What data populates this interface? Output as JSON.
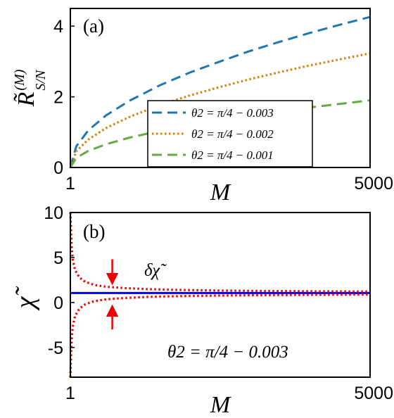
{
  "chart_data": [
    {
      "type": "line",
      "panel_label": "(a)",
      "xlabel": "M",
      "ylabel": "R̃",
      "ylabel_sup": "(M)",
      "ylabel_sub": "S/N",
      "xlim": [
        1,
        5000
      ],
      "ylim": [
        0,
        4.5
      ],
      "xticks": [
        "1",
        "5000"
      ],
      "yticks": [
        0,
        2,
        4
      ],
      "yticklabels": [
        "0",
        "2",
        "4"
      ],
      "legend_position": "bottom-right",
      "grid": false,
      "series": [
        {
          "name": "θ2 = π/4 − 0.003",
          "color": "#1f77b4",
          "style": "dashed",
          "x": [
            1,
            100,
            300,
            600,
            1000,
            1500,
            2000,
            2500,
            3000,
            3500,
            4000,
            4500,
            5000
          ],
          "y": [
            0,
            0.6,
            1.05,
            1.48,
            1.9,
            2.33,
            2.69,
            3.0,
            3.3,
            3.56,
            3.81,
            4.04,
            4.26
          ]
        },
        {
          "name": "θ2 = π/4 − 0.002",
          "color": "#d4820a",
          "style": "dotted",
          "x": [
            1,
            100,
            300,
            600,
            1000,
            1500,
            2000,
            2500,
            3000,
            3500,
            4000,
            4500,
            5000
          ],
          "y": [
            0,
            0.46,
            0.79,
            1.12,
            1.44,
            1.77,
            2.04,
            2.28,
            2.5,
            2.7,
            2.89,
            3.06,
            3.23
          ]
        },
        {
          "name": "θ2 = π/4 − 0.001",
          "color": "#66aa44",
          "style": "dashed",
          "x": [
            1,
            100,
            300,
            600,
            1000,
            1500,
            2000,
            2500,
            3000,
            3500,
            4000,
            4500,
            5000
          ],
          "y": [
            0,
            0.27,
            0.47,
            0.66,
            0.85,
            1.04,
            1.2,
            1.35,
            1.47,
            1.59,
            1.7,
            1.8,
            1.9
          ]
        }
      ]
    },
    {
      "type": "line",
      "panel_label": "(b)",
      "xlabel": "M",
      "ylabel": "χ̃",
      "xlim": [
        1,
        5000
      ],
      "ylim": [
        -8.3,
        10
      ],
      "xticks": [
        "1",
        "5000"
      ],
      "yticks": [
        -5,
        0,
        5,
        10
      ],
      "yticklabels": [
        "-5",
        "0",
        "5",
        "10"
      ],
      "annotation": "θ2 = π/4 − 0.003",
      "delta_label": "δχ̃",
      "arrow_x": 700,
      "grid": false,
      "series": [
        {
          "color": "#0000ee",
          "style": "solid",
          "x": [
            1,
            5000
          ],
          "y": [
            1.05,
            1.05
          ]
        },
        {
          "color": "#ee0000",
          "style": "dotted",
          "x": [
            1,
            10,
            20,
            40,
            80,
            150,
            250,
            400,
            600,
            900,
            1300,
            1800,
            2500,
            3300,
            4200,
            5000
          ],
          "y": [
            10,
            8.5,
            6.5,
            4.8,
            3.6,
            2.8,
            2.3,
            1.95,
            1.75,
            1.6,
            1.48,
            1.4,
            1.33,
            1.28,
            1.24,
            1.22
          ]
        },
        {
          "color": "#ee0000",
          "style": "dotted",
          "x": [
            1,
            10,
            20,
            40,
            80,
            150,
            250,
            400,
            600,
            900,
            1300,
            1800,
            2500,
            3300,
            4200,
            5000
          ],
          "y": [
            -8.3,
            -6.4,
            -4.4,
            -2.7,
            -1.5,
            -0.7,
            -0.2,
            0.15,
            0.35,
            0.5,
            0.62,
            0.7,
            0.77,
            0.82,
            0.86,
            0.88
          ]
        }
      ]
    }
  ]
}
